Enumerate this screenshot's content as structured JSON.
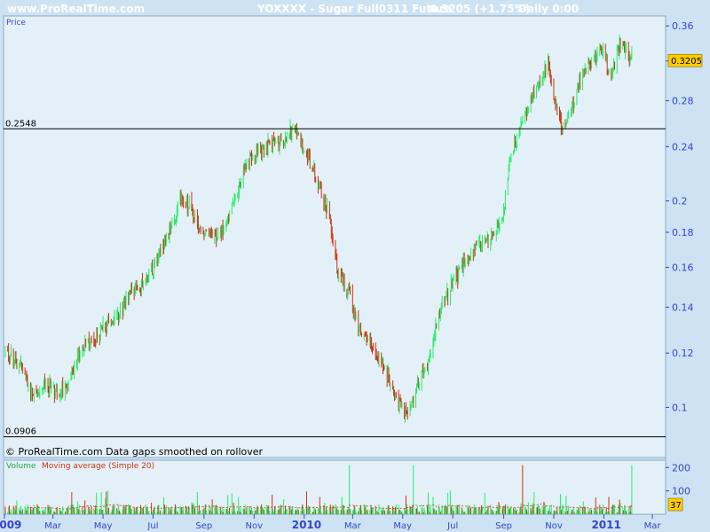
{
  "header": {
    "site": "www.ProRealTime.com",
    "title": "YOXXXX - Sugar Full0311 Future",
    "quote": "0.3205 (+1.75%)",
    "period": "Daily  0:00"
  },
  "price_panel": {
    "label": "Price",
    "last_value_badge": "0.3205",
    "upper_line_label": "0.2548",
    "lower_line_label": "0.0906",
    "note": "© ProRealTime.com  Data gaps smoothed on rollover"
  },
  "volume_panel": {
    "label_volume": "Volume",
    "label_ma": "Moving average (Simple 20)",
    "last_value_badge": "37"
  },
  "colors": {
    "background": "#cde3f3",
    "plot_bg": "#e4f0f8",
    "up": "#22ee66",
    "down": "#cc3311",
    "axis_text": "#3344cc",
    "badge_bg": "#ffcc00",
    "header_text": "#ffffff",
    "ma_line": "#cc3311"
  },
  "chart_data": [
    {
      "type": "line",
      "title": "YOXXXX - Sugar Full0311 Future",
      "yscale": "log",
      "ylim": [
        0.085,
        0.37
      ],
      "y_ticks": [
        "0.36",
        "0.32",
        "0.28",
        "0.24",
        "0.2",
        "0.18",
        "0.16",
        "0.14",
        "0.12",
        "0.1"
      ],
      "x_ticks": [
        "2009",
        "Mar",
        "May",
        "Jul",
        "Sep",
        "Nov",
        "2010",
        "Mar",
        "May",
        "Jul",
        "Sep",
        "Nov",
        "2011",
        "Mar"
      ],
      "x_range": [
        "2009-01-01",
        "2011-03-15"
      ],
      "horizontal_lines": [
        {
          "value": 0.2548,
          "label": "0.2548"
        },
        {
          "value": 0.0906,
          "label": "0.0906"
        }
      ],
      "last_value": 0.3205,
      "change_pct": 1.75,
      "series": [
        {
          "x": [
            "2009-01-02",
            "2009-01-20",
            "2009-02-05",
            "2009-02-20",
            "2009-03-05",
            "2009-03-20",
            "2009-04-05",
            "2009-04-20",
            "2009-05-05",
            "2009-05-20",
            "2009-06-05",
            "2009-06-20",
            "2009-07-05",
            "2009-07-20",
            "2009-08-05",
            "2009-08-15",
            "2009-08-25",
            "2009-09-05",
            "2009-09-20",
            "2009-10-05",
            "2009-10-20",
            "2009-11-05",
            "2009-11-20",
            "2009-12-05",
            "2009-12-20",
            "2010-01-01",
            "2010-01-15",
            "2010-01-30",
            "2010-02-10",
            "2010-02-25",
            "2010-03-05",
            "2010-03-20",
            "2010-04-05",
            "2010-04-20",
            "2010-05-01",
            "2010-05-10",
            "2010-05-20",
            "2010-06-01",
            "2010-06-15",
            "2010-06-30",
            "2010-07-15",
            "2010-07-30",
            "2010-08-15",
            "2010-08-30",
            "2010-09-10",
            "2010-09-25",
            "2010-10-05",
            "2010-10-15",
            "2010-10-25",
            "2010-11-01",
            "2010-11-10",
            "2010-11-20",
            "2010-12-01",
            "2010-12-15",
            "2010-12-30",
            "2011-01-10",
            "2011-01-20",
            "2011-01-30",
            "2011-02-05"
          ],
          "values": [
            0.121,
            0.115,
            0.104,
            0.109,
            0.105,
            0.108,
            0.123,
            0.125,
            0.132,
            0.136,
            0.147,
            0.152,
            0.163,
            0.181,
            0.203,
            0.197,
            0.181,
            0.182,
            0.178,
            0.194,
            0.224,
            0.237,
            0.242,
            0.244,
            0.255,
            0.238,
            0.219,
            0.193,
            0.159,
            0.147,
            0.133,
            0.125,
            0.117,
            0.106,
            0.098,
            0.1,
            0.109,
            0.117,
            0.138,
            0.151,
            0.162,
            0.171,
            0.175,
            0.185,
            0.236,
            0.264,
            0.283,
            0.3,
            0.318,
            0.285,
            0.256,
            0.264,
            0.296,
            0.318,
            0.334,
            0.303,
            0.338,
            0.329,
            0.3205
          ]
        }
      ]
    },
    {
      "type": "bar",
      "title": "Volume",
      "y_ticks": [
        "200",
        "100"
      ],
      "ylim": [
        0,
        220
      ],
      "moving_average": "Simple 20",
      "last_value": 37,
      "peaks": [
        {
          "x": "2010-02-25",
          "value": 210
        },
        {
          "x": "2010-05-15",
          "value": 210
        },
        {
          "x": "2010-09-25",
          "value": 210
        },
        {
          "x": "2011-02-05",
          "value": 210
        }
      ]
    }
  ]
}
